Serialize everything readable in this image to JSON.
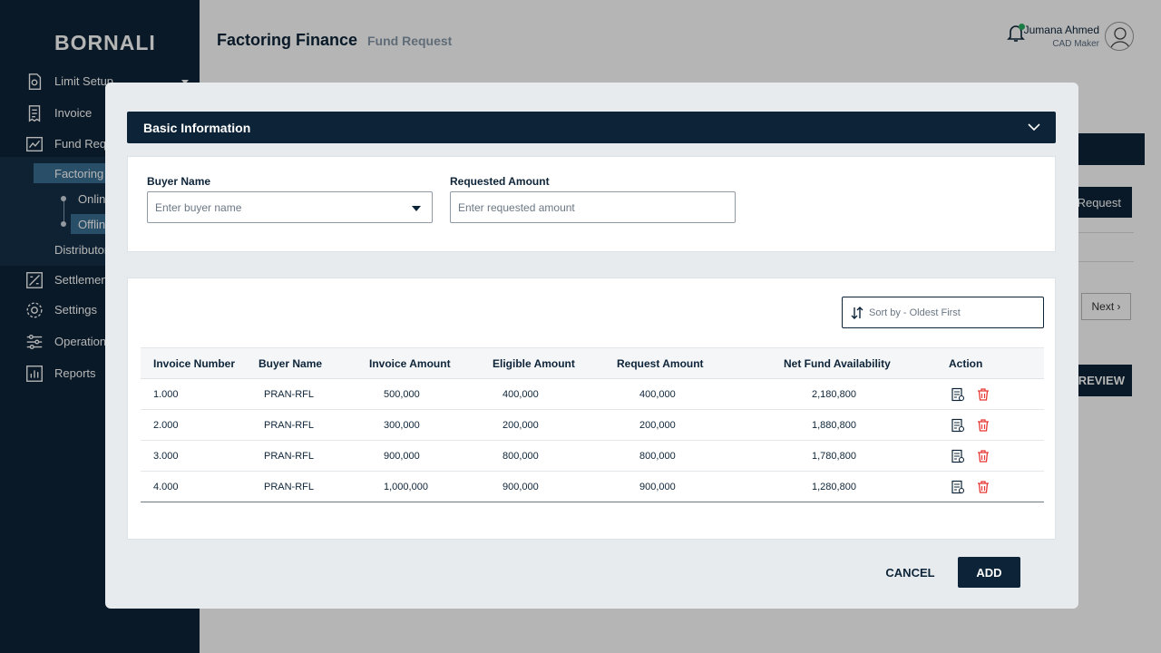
{
  "app": {
    "brand": "BORNALI",
    "page_title": "Factoring Finance",
    "page_subtitle": "Fund Request"
  },
  "user": {
    "name": "Jumana Ahmed",
    "role": "CAD Maker"
  },
  "sidebar": {
    "items": [
      {
        "label": "Limit Setup",
        "icon": "limit-setup-icon"
      },
      {
        "label": "Invoice",
        "icon": "invoice-icon"
      },
      {
        "label": "Fund Requ",
        "icon": "fund-request-icon"
      },
      {
        "label": "Factoring F",
        "icon": ""
      },
      {
        "label": "Online",
        "icon": ""
      },
      {
        "label": "Offline",
        "icon": ""
      },
      {
        "label": "Distributor",
        "icon": ""
      },
      {
        "label": "Settlement",
        "icon": "settlement-icon"
      },
      {
        "label": "Settings",
        "icon": "gear-icon"
      },
      {
        "label": "Operation",
        "icon": "sliders-icon"
      },
      {
        "label": "Reports",
        "icon": "reports-icon"
      }
    ]
  },
  "background": {
    "request_label": "Request",
    "next_label": "Next",
    "preview_label": "PREVIEW"
  },
  "modal": {
    "section_title": "Basic Information",
    "buyer_label": "Buyer Name",
    "buyer_placeholder": "Enter buyer name",
    "amount_label": "Requested Amount",
    "amount_placeholder": "Enter requested amount",
    "sort_label": "Sort by - Oldest First",
    "cancel_label": "CANCEL",
    "add_label": "ADD"
  },
  "table": {
    "headers": [
      "Invoice Number",
      "Buyer Name",
      "Invoice Amount",
      "Eligible Amount",
      "Request Amount",
      "Net Fund Availability",
      "Action"
    ],
    "rows": [
      [
        "1.000",
        "PRAN-RFL",
        "500,000",
        "400,000",
        "400,000",
        "2,180,800"
      ],
      [
        "2.000",
        "PRAN-RFL",
        "300,000",
        "200,000",
        "200,000",
        "1,880,800"
      ],
      [
        "3.000",
        "PRAN-RFL",
        "900,000",
        "800,000",
        "800,000",
        "1,780,800"
      ],
      [
        "4.000",
        "PRAN-RFL",
        "1,000,000",
        "900,000",
        "900,000",
        "1,280,800"
      ]
    ]
  },
  "colors": {
    "primary": "#0d2438",
    "delete": "#e53935",
    "notification": "#27ae60"
  }
}
